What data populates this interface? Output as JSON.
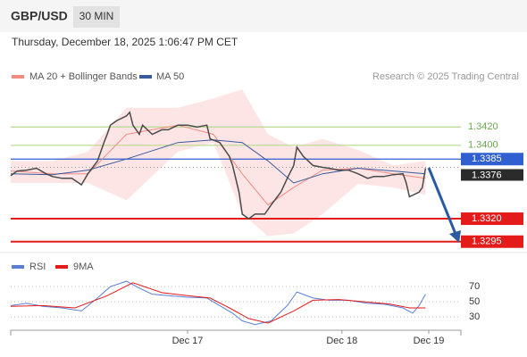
{
  "chart_data": {
    "type": "line",
    "title": "GBP/USD",
    "timeframe": "30 MIN",
    "timestamp": "Thursday, December 18, 2025 1:06:47 PM CET",
    "legend": {
      "bands": "MA 20 + Bollinger Bands",
      "ma50": "MA 50",
      "rsi": "RSI",
      "rsi_ma": "9MA"
    },
    "credit": "Research © 2025 Trading Central",
    "xlim": [
      0,
      140
    ],
    "xticks": [
      {
        "value": 55,
        "label": "Dec 17"
      },
      {
        "value": 103,
        "label": "Dec 18"
      },
      {
        "value": 130,
        "label": "Dec 19"
      }
    ],
    "ylim": [
      1.3286,
      1.3466
    ],
    "price": {
      "color": "#4a4a4a",
      "x": [
        0,
        2,
        5,
        8,
        11,
        13,
        16,
        19,
        22,
        24,
        27,
        29,
        30,
        31,
        33,
        36,
        37,
        38,
        40,
        41,
        44,
        47,
        49,
        52,
        55,
        58,
        61,
        62,
        65,
        68,
        69,
        71,
        72,
        74,
        76,
        79,
        81,
        84,
        86,
        88,
        89,
        91,
        94,
        97,
        99,
        102,
        105,
        108,
        111,
        113,
        116,
        119,
        122,
        123,
        124,
        127,
        128,
        129
      ],
      "values": [
        1.3367,
        1.3372,
        1.3373,
        1.3375,
        1.3369,
        1.3366,
        1.3364,
        1.3364,
        1.3357,
        1.3369,
        1.3383,
        1.3403,
        1.3412,
        1.3422,
        1.3427,
        1.3432,
        1.3436,
        1.3422,
        1.3412,
        1.3422,
        1.3412,
        1.3417,
        1.3417,
        1.3422,
        1.3422,
        1.342,
        1.3422,
        1.3407,
        1.3403,
        1.3388,
        1.3378,
        1.3349,
        1.3325,
        1.332,
        1.3325,
        1.3325,
        1.3335,
        1.3349,
        1.3364,
        1.3378,
        1.3398,
        1.3388,
        1.3378,
        1.3376,
        1.3375,
        1.3373,
        1.3373,
        1.3369,
        1.3364,
        1.3366,
        1.3366,
        1.3368,
        1.3369,
        1.3359,
        1.3344,
        1.3349,
        1.3354,
        1.3375
      ]
    },
    "ma_x": [
      0,
      13,
      24,
      36,
      52,
      63,
      72,
      80,
      88,
      97,
      108,
      119,
      129
    ],
    "ma20": {
      "color": "#f28b82",
      "values": [
        1.3372,
        1.3369,
        1.3369,
        1.3412,
        1.3422,
        1.3412,
        1.3369,
        1.3335,
        1.3354,
        1.3373,
        1.3375,
        1.3369,
        1.3364
      ]
    },
    "ma50": {
      "color": "#3a5a9c",
      "values": [
        1.3369,
        1.3368,
        1.3373,
        1.3385,
        1.3403,
        1.3406,
        1.3403,
        1.3383,
        1.3359,
        1.3369,
        1.3375,
        1.3372,
        1.3369
      ]
    },
    "bb_upper": [
      1.3383,
      1.3383,
      1.3393,
      1.3441,
      1.3441,
      1.3451,
      1.3461,
      1.3412,
      1.3398,
      1.3407,
      1.3395,
      1.3378,
      1.3383
    ],
    "bb_lower": [
      1.3359,
      1.3359,
      1.3359,
      1.334,
      1.3393,
      1.3403,
      1.3325,
      1.3301,
      1.3304,
      1.3325,
      1.3358,
      1.3354,
      1.3346
    ],
    "bb_color": "#fde0e0",
    "levels": [
      {
        "value": 1.342,
        "label": "1.3420",
        "color": "#b6d98f",
        "style": "text"
      },
      {
        "value": 1.34,
        "label": "1.3400",
        "color": "#b6d98f",
        "style": "text"
      },
      {
        "value": 1.3385,
        "label": "1.3385",
        "color": "#2f5fd0",
        "style": "box"
      },
      {
        "value": 1.3376,
        "label": "1.3376",
        "color": "#2b2b2b",
        "style": "last"
      },
      {
        "value": 1.332,
        "label": "1.3320",
        "color": "#e31b1b",
        "style": "box"
      },
      {
        "value": 1.3295,
        "label": "1.3295",
        "color": "#e31b1b",
        "style": "box"
      }
    ],
    "rsi": {
      "ylim": [
        15,
        83
      ],
      "yticks": [
        70,
        50,
        30
      ],
      "color": "#5b7fd6",
      "ma_color": "#e31b1b",
      "x": [
        0,
        5,
        10,
        16,
        22,
        27,
        31,
        36,
        40,
        44,
        49,
        55,
        61,
        65,
        69,
        72,
        76,
        81,
        86,
        89,
        94,
        99,
        105,
        111,
        116,
        122,
        125,
        127,
        129
      ],
      "values": [
        45,
        48,
        44,
        42,
        38,
        55,
        70,
        77,
        68,
        60,
        58,
        56,
        55,
        45,
        35,
        25,
        20,
        25,
        45,
        63,
        55,
        52,
        52,
        48,
        47,
        42,
        35,
        45,
        60
      ],
      "ma_x": [
        0,
        10,
        20,
        30,
        38,
        47,
        55,
        62,
        68,
        74,
        80,
        88,
        94,
        102,
        110,
        118,
        124,
        129
      ],
      "ma_values": [
        44,
        45,
        42,
        58,
        75,
        62,
        58,
        55,
        42,
        28,
        22,
        38,
        52,
        53,
        50,
        47,
        42,
        42
      ]
    }
  }
}
